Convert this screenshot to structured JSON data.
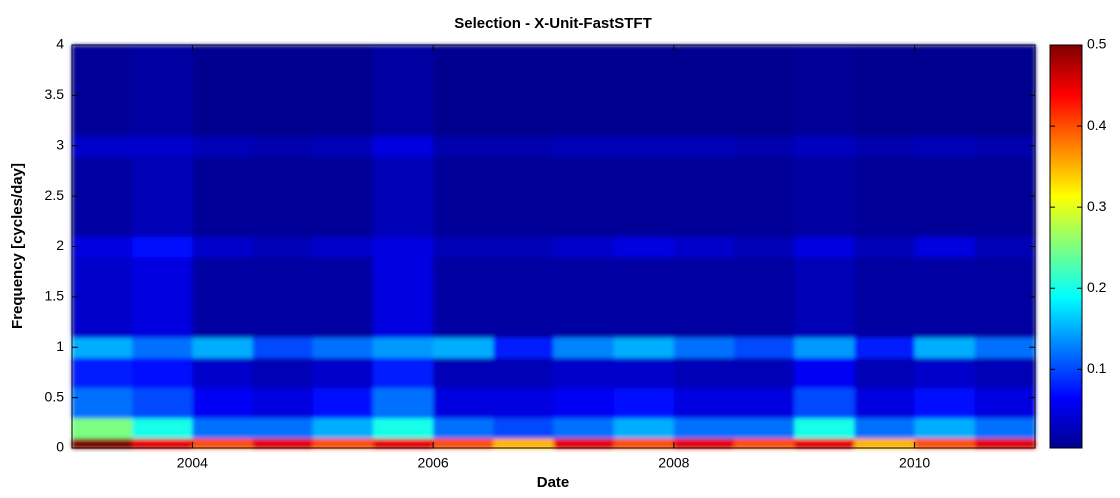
{
  "chart_data": {
    "type": "spectrogram",
    "title": "Selection - X-Unit-FastSTFT",
    "x_label": "Date",
    "y_label": "Frequency [cycles/day]",
    "xlim": [
      2003,
      2011
    ],
    "xticks": [
      2004,
      2006,
      2008,
      2010
    ],
    "ylim": [
      0,
      4
    ],
    "yticks": [
      0,
      0.5,
      1,
      1.5,
      2,
      2.5,
      3,
      3.5,
      4
    ],
    "zlim": [
      0.003,
      0.5
    ],
    "colorbar_ticks": [
      0.1,
      0.2,
      0.3,
      0.4,
      0.5
    ],
    "colormap": "jet",
    "x_bins": [
      2003,
      2003.5,
      2004,
      2004.5,
      2005,
      2005.5,
      2006,
      2006.5,
      2007,
      2007.5,
      2008,
      2008.5,
      2009,
      2009.5,
      2010,
      2010.5,
      2011
    ],
    "y_bins": [
      0,
      0.1,
      0.3,
      0.6,
      0.9,
      1.1,
      1.9,
      2.1,
      2.9,
      3.1,
      4
    ],
    "values": [
      [
        0.5,
        0.45,
        0.4,
        0.45,
        0.4,
        0.45,
        0.4,
        0.35,
        0.45,
        0.4,
        0.45,
        0.4,
        0.45,
        0.35,
        0.4,
        0.45
      ],
      [
        0.25,
        0.2,
        0.12,
        0.12,
        0.15,
        0.2,
        0.12,
        0.1,
        0.12,
        0.15,
        0.12,
        0.12,
        0.2,
        0.12,
        0.15,
        0.12
      ],
      [
        0.12,
        0.1,
        0.06,
        0.05,
        0.07,
        0.12,
        0.05,
        0.05,
        0.06,
        0.07,
        0.05,
        0.05,
        0.1,
        0.05,
        0.07,
        0.05
      ],
      [
        0.08,
        0.07,
        0.04,
        0.03,
        0.04,
        0.08,
        0.03,
        0.03,
        0.04,
        0.04,
        0.03,
        0.03,
        0.06,
        0.03,
        0.04,
        0.03
      ],
      [
        0.15,
        0.12,
        0.15,
        0.1,
        0.12,
        0.14,
        0.15,
        0.08,
        0.13,
        0.15,
        0.12,
        0.1,
        0.14,
        0.08,
        0.15,
        0.12
      ],
      [
        0.04,
        0.05,
        0.02,
        0.02,
        0.02,
        0.05,
        0.02,
        0.02,
        0.02,
        0.02,
        0.02,
        0.02,
        0.03,
        0.02,
        0.02,
        0.02
      ],
      [
        0.05,
        0.07,
        0.04,
        0.03,
        0.04,
        0.05,
        0.03,
        0.03,
        0.04,
        0.05,
        0.04,
        0.03,
        0.05,
        0.03,
        0.05,
        0.03
      ],
      [
        0.02,
        0.03,
        0.015,
        0.015,
        0.015,
        0.03,
        0.015,
        0.015,
        0.015,
        0.015,
        0.015,
        0.015,
        0.02,
        0.015,
        0.015,
        0.015
      ],
      [
        0.04,
        0.04,
        0.03,
        0.025,
        0.03,
        0.05,
        0.025,
        0.025,
        0.03,
        0.03,
        0.03,
        0.025,
        0.035,
        0.025,
        0.03,
        0.025
      ],
      [
        0.015,
        0.02,
        0.01,
        0.01,
        0.01,
        0.02,
        0.01,
        0.01,
        0.01,
        0.01,
        0.01,
        0.01,
        0.015,
        0.01,
        0.01,
        0.01
      ]
    ]
  }
}
